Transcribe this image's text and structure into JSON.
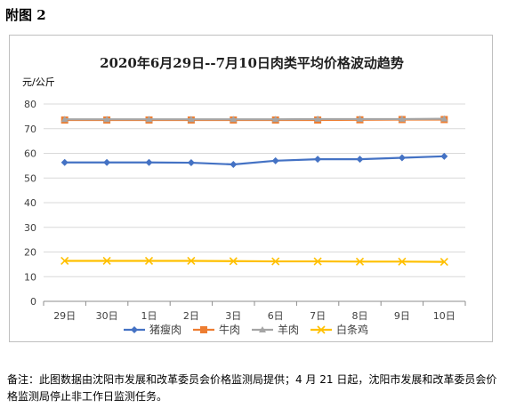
{
  "figure_label": "附图 2",
  "chart_data": {
    "type": "line",
    "title": "2020年6月29日--7月10日肉类平均价格波动趋势",
    "ylabel": "元/公斤",
    "xlabel": "",
    "categories": [
      "29日",
      "30日",
      "1日",
      "2日",
      "3日",
      "6日",
      "7日",
      "8日",
      "9日",
      "10日"
    ],
    "ylim": [
      0,
      80
    ],
    "yticks": [
      0,
      10,
      20,
      30,
      40,
      50,
      60,
      70,
      80
    ],
    "grid": true,
    "legend_position": "bottom",
    "series": [
      {
        "name": "猪瘦肉",
        "color": "#4472c4",
        "marker": "diamond",
        "values": [
          56.3,
          56.3,
          56.3,
          56.2,
          55.5,
          57.0,
          57.6,
          57.6,
          58.2,
          58.8
        ]
      },
      {
        "name": "牛肉",
        "color": "#ed7d31",
        "marker": "square",
        "values": [
          73.5,
          73.5,
          73.5,
          73.5,
          73.5,
          73.5,
          73.5,
          73.6,
          73.7,
          73.7
        ]
      },
      {
        "name": "羊肉",
        "color": "#a5a5a5",
        "marker": "triangle",
        "values": [
          73.8,
          73.8,
          73.8,
          73.8,
          73.8,
          73.8,
          73.9,
          73.9,
          73.9,
          74.0
        ]
      },
      {
        "name": "白条鸡",
        "color": "#ffc000",
        "marker": "x",
        "values": [
          16.4,
          16.4,
          16.4,
          16.4,
          16.3,
          16.2,
          16.2,
          16.1,
          16.1,
          16.0
        ]
      }
    ]
  },
  "note": "备注：此图数据由沈阳市发展和改革委员会价格监测局提供；4 月 21 日起，沈阳市发展和改革委员会价格监测局停止非工作日监测任务。"
}
